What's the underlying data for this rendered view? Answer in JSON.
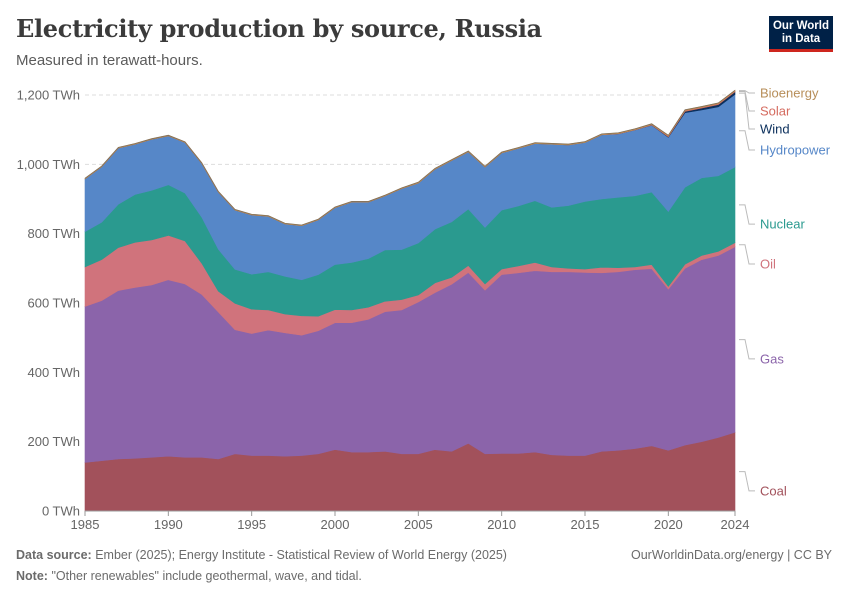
{
  "header": {
    "title": "Electricity production by source, Russia",
    "subtitle": "Measured in terawatt-hours.",
    "logo_line1": "Our World",
    "logo_line2": "in Data"
  },
  "footer": {
    "source_label": "Data source:",
    "source_text": "Ember (2025); Energy Institute - Statistical Review of World Energy (2025)",
    "credit": "OurWorldinData.org/energy | CC BY",
    "note_label": "Note:",
    "note_text": "\"Other renewables\" include geothermal, wave, and tidal."
  },
  "chart_data": {
    "type": "area",
    "stacked": true,
    "title": "Electricity production by source, Russia",
    "subtitle": "Measured in terawatt-hours.",
    "ylim": [
      0,
      1200
    ],
    "y_ticks": [
      0,
      200,
      400,
      600,
      800,
      1000,
      1200
    ],
    "y_tick_labels": [
      "0 TWh",
      "200 TWh",
      "400 TWh",
      "600 TWh",
      "800 TWh",
      "1,000 TWh",
      "1,200 TWh"
    ],
    "x_ticks": [
      1985,
      1990,
      1995,
      2000,
      2005,
      2010,
      2015,
      2020,
      2024
    ],
    "grid": "horizontal-dashed",
    "legend": "right",
    "x": [
      1985,
      1986,
      1987,
      1988,
      1989,
      1990,
      1991,
      1992,
      1993,
      1994,
      1995,
      1996,
      1997,
      1998,
      1999,
      2000,
      2001,
      2002,
      2003,
      2004,
      2005,
      2006,
      2007,
      2008,
      2009,
      2010,
      2011,
      2012,
      2013,
      2014,
      2015,
      2016,
      2017,
      2018,
      2019,
      2020,
      2021,
      2022,
      2023,
      2024
    ],
    "series": [
      {
        "name": "Coal",
        "color": "#a2515b",
        "values": [
          140,
          145,
          150,
          152,
          155,
          158,
          155,
          155,
          150,
          165,
          160,
          160,
          158,
          160,
          165,
          177,
          170,
          170,
          172,
          165,
          165,
          177,
          172,
          195,
          165,
          166,
          166,
          170,
          162,
          160,
          160,
          172,
          175,
          180,
          188,
          175,
          190,
          200,
          212,
          227
        ]
      },
      {
        "name": "Gas",
        "color": "#8b64aa",
        "values": [
          450,
          462,
          486,
          493,
          497,
          509,
          500,
          470,
          424,
          358,
          352,
          362,
          356,
          347,
          355,
          366,
          373,
          383,
          403,
          415,
          438,
          453,
          482,
          493,
          472,
          516,
          521,
          523,
          528,
          530,
          528,
          515,
          515,
          516,
          511,
          465,
          510,
          525,
          525,
          535
        ]
      },
      {
        "name": "Oil",
        "color": "#d0737c",
        "values": [
          114,
          118,
          124,
          130,
          130,
          128,
          124,
          90,
          60,
          76,
          70,
          58,
          54,
          56,
          42,
          38,
          37,
          35,
          30,
          30,
          20,
          28,
          20,
          20,
          18,
          16,
          20,
          24,
          14,
          10,
          10,
          16,
          12,
          8,
          12,
          8,
          12,
          12,
          12,
          12
        ]
      },
      {
        "name": "Nuclear",
        "color": "#2a9a8f",
        "values": [
          102,
          108,
          125,
          138,
          143,
          146,
          138,
          133,
          121,
          98,
          101,
          110,
          109,
          104,
          120,
          130,
          137,
          140,
          148,
          144,
          150,
          155,
          160,
          163,
          163,
          170,
          173,
          178,
          172,
          181,
          195,
          197,
          203,
          205,
          209,
          216,
          222,
          224,
          218,
          218
        ]
      },
      {
        "name": "Hydropower",
        "color": "#5687c8",
        "values": [
          152,
          160,
          162,
          145,
          147,
          141,
          146,
          155,
          165,
          171,
          171,
          160,
          151,
          156,
          158,
          164,
          174,
          163,
          156,
          176,
          173,
          173,
          177,
          165,
          174,
          165,
          166,
          165,
          182,
          175,
          170,
          185,
          183,
          190,
          193,
          214,
          215,
          196,
          199,
          210
        ]
      },
      {
        "name": "Wind",
        "color": "#0b2f5c",
        "values": [
          0,
          0,
          0,
          0,
          0,
          0,
          0,
          0,
          0,
          0,
          0,
          0,
          0,
          0,
          0,
          0,
          0,
          0,
          0,
          0,
          0,
          0,
          0,
          0,
          0,
          0,
          0,
          0,
          0,
          0,
          0,
          0,
          0,
          0.2,
          0.3,
          1.4,
          3.6,
          5.2,
          6.4,
          7
        ]
      },
      {
        "name": "Solar",
        "color": "#d56b5f",
        "values": [
          0,
          0,
          0,
          0,
          0,
          0,
          0,
          0,
          0,
          0,
          0,
          0,
          0,
          0,
          0,
          0,
          0,
          0,
          0,
          0,
          0,
          0,
          0,
          0,
          0,
          0,
          0,
          0,
          0,
          0,
          0.1,
          0.4,
          0.6,
          0.8,
          1.3,
          2,
          2.3,
          2.2,
          2.3,
          2.4
        ]
      },
      {
        "name": "Bioenergy",
        "color": "#b78e59",
        "values": [
          2,
          2,
          2,
          2,
          2,
          2,
          2,
          2,
          2,
          2,
          2,
          2,
          2,
          2,
          2,
          2,
          2,
          2,
          2,
          2,
          2.5,
          2.5,
          2.5,
          2.5,
          2.5,
          2.5,
          2.5,
          2.5,
          2.5,
          2.5,
          2.5,
          2.5,
          2.5,
          2.5,
          2.5,
          2.5,
          2.5,
          2.5,
          2.5,
          2.5
        ]
      }
    ]
  }
}
